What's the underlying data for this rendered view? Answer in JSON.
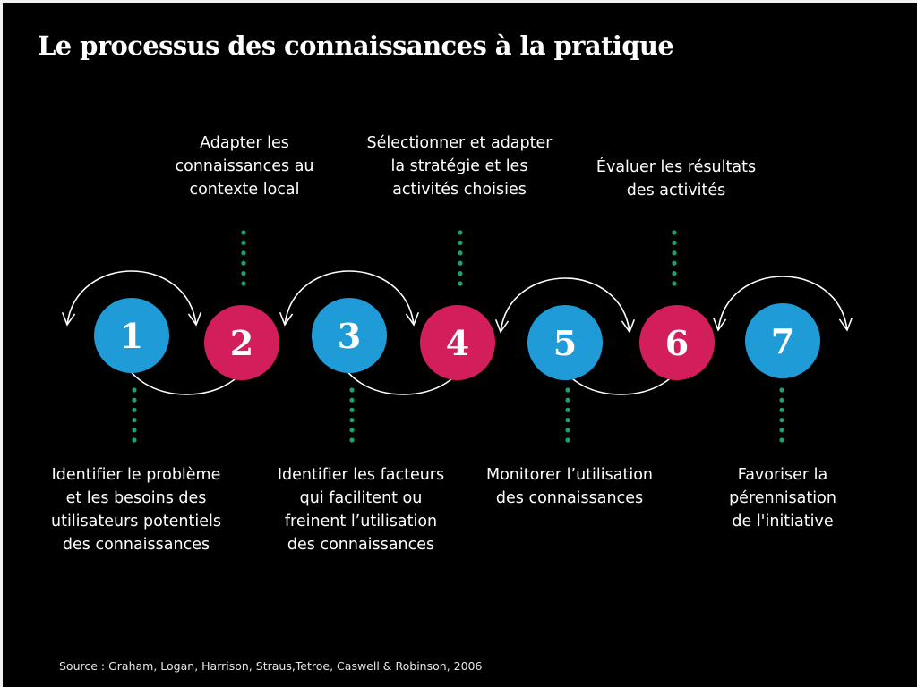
{
  "title": "Le processus des connaissances à la pratique",
  "colors": {
    "background": "#000000",
    "blue": "#1f9bd7",
    "pink": "#d21f5b",
    "dots": "#1aa36a",
    "arrows": "#ffffff"
  },
  "steps": [
    {
      "number": "1",
      "color": "blue",
      "label_position": "below",
      "label": [
        "Identifier le problème",
        "et les besoins des",
        "utilisateurs potentiels",
        "des connaissances"
      ]
    },
    {
      "number": "2",
      "color": "pink",
      "label_position": "above",
      "label": [
        "Adapter les",
        "connaissances au",
        "contexte local"
      ]
    },
    {
      "number": "3",
      "color": "blue",
      "label_position": "below",
      "label": [
        "Identifier les facteurs",
        "qui facilitent ou",
        "freinent l’utilisation",
        "des connaissances"
      ]
    },
    {
      "number": "4",
      "color": "pink",
      "label_position": "above",
      "label": [
        "Sélectionner et adapter",
        "la stratégie et les",
        "activités choisies"
      ]
    },
    {
      "number": "5",
      "color": "blue",
      "label_position": "below",
      "label": [
        "Monitorer l’utilisation",
        "des connaissances"
      ]
    },
    {
      "number": "6",
      "color": "pink",
      "label_position": "above",
      "label": [
        "Évaluer les résultats",
        "des activités"
      ]
    },
    {
      "number": "7",
      "color": "blue",
      "label_position": "below",
      "label": [
        "Favoriser la",
        "pérennisation",
        "de l'initiative"
      ]
    }
  ],
  "source": "Source : Graham, Logan, Harrison, Straus,Tetroe, Caswell & Robinson, 2006"
}
